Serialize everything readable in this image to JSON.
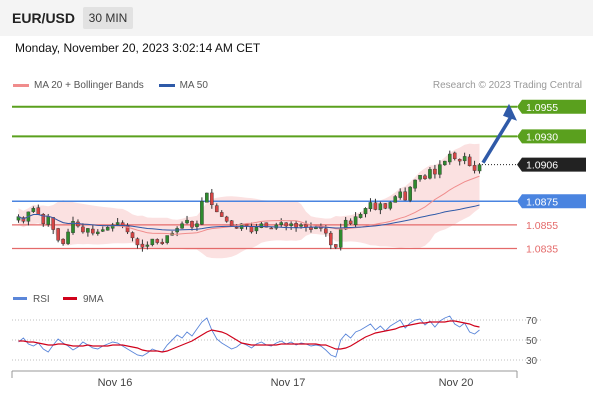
{
  "header": {
    "pair": "EUR/USD",
    "timeframe": "30 MIN",
    "datetime": "Monday, November 20, 2023 3:02:14 AM CET"
  },
  "legend": {
    "items": [
      {
        "label": "MA 20 + Bollinger Bands",
        "color": "#f08c8c"
      },
      {
        "label": "MA 50",
        "color": "#2f5aa8"
      }
    ],
    "credit": "Research © 2023 Trading Central"
  },
  "rsi_legend": {
    "items": [
      {
        "label": "RSI",
        "color": "#5b86d9"
      },
      {
        "label": "9MA",
        "color": "#d0021b"
      }
    ]
  },
  "colors": {
    "up_candle": "#2e8b2e",
    "down_candle": "#d64545",
    "resistance": "#5aa01e",
    "pivot": "#4a84e0",
    "support": "#e46a6a",
    "arrow": "#2f5aa8",
    "bollinger_fill": "#fbe1e1"
  },
  "chart_data": [
    {
      "type": "candlestick",
      "title": "",
      "x_tick_labels": [
        "Nov 16",
        "Nov 17",
        "Nov 20"
      ],
      "y_range": [
        1.081,
        1.0965
      ],
      "levels": [
        {
          "value": 1.0955,
          "label": "1.0955",
          "kind": "resistance"
        },
        {
          "value": 1.093,
          "label": "1.0930",
          "kind": "resistance"
        },
        {
          "value": 1.0906,
          "label": "1.0906",
          "kind": "last_price"
        },
        {
          "value": 1.0875,
          "label": "1.0875",
          "kind": "pivot"
        },
        {
          "value": 1.0855,
          "label": "1.0855",
          "kind": "support"
        },
        {
          "value": 1.0835,
          "label": "1.0835",
          "kind": "support"
        }
      ],
      "close_series_approx": [
        1.0862,
        1.0858,
        1.0866,
        1.0869,
        1.0864,
        1.0856,
        1.0862,
        1.0851,
        1.0842,
        1.0839,
        1.0849,
        1.0858,
        1.0854,
        1.0849,
        1.0852,
        1.0848,
        1.0849,
        1.0851,
        1.0853,
        1.0855,
        1.0857,
        1.0854,
        1.0849,
        1.0844,
        1.0838,
        1.0836,
        1.0838,
        1.0843,
        1.084,
        1.0839,
        1.0846,
        1.0848,
        1.0852,
        1.0856,
        1.0859,
        1.0853,
        1.0856,
        1.0875,
        1.0882,
        1.0872,
        1.0866,
        1.0862,
        1.0858,
        1.0854,
        1.0852,
        1.0856,
        1.0854,
        1.0849,
        1.0853,
        1.0856,
        1.0853,
        1.0852,
        1.0855,
        1.0857,
        1.0854,
        1.0856,
        1.0853,
        1.0855,
        1.0853,
        1.0851,
        1.0853,
        1.0852,
        1.0848,
        1.0838,
        1.0836,
        1.0852,
        1.0859,
        1.0856,
        1.0862,
        1.0864,
        1.0869,
        1.0874,
        1.0868,
        1.0873,
        1.0869,
        1.0874,
        1.0879,
        1.0883,
        1.0876,
        1.0887,
        1.0893,
        1.0897,
        1.0894,
        1.0902,
        1.0898,
        1.0906,
        1.0909,
        1.0915,
        1.0911,
        1.0909,
        1.0913,
        1.0905,
        1.0901,
        1.0906
      ],
      "overlays": [
        "MA 20 + Bollinger Bands",
        "MA 50"
      ]
    },
    {
      "type": "line",
      "title": "",
      "series": [
        {
          "name": "RSI",
          "values": [
            48,
            52,
            46,
            44,
            47,
            41,
            38,
            45,
            51,
            47,
            44,
            40,
            43,
            48,
            45,
            42,
            41,
            44,
            46,
            48,
            47,
            44,
            41,
            38,
            35,
            34,
            37,
            41,
            39,
            38,
            45,
            50,
            55,
            52,
            58,
            54,
            61,
            68,
            72,
            60,
            51,
            47,
            44,
            41,
            43,
            47,
            45,
            42,
            46,
            48,
            45,
            44,
            47,
            49,
            46,
            48,
            45,
            47,
            46,
            44,
            45,
            44,
            40,
            35,
            33,
            50,
            56,
            52,
            58,
            60,
            63,
            66,
            60,
            64,
            59,
            64,
            67,
            70,
            62,
            67,
            70,
            71,
            65,
            69,
            63,
            69,
            72,
            74,
            66,
            63,
            67,
            58,
            56,
            60
          ]
        },
        {
          "name": "9MA",
          "values": [
            49,
            49,
            48,
            48,
            47,
            46,
            45,
            45,
            46,
            46,
            45,
            44,
            44,
            44,
            45,
            44,
            44,
            44,
            44,
            45,
            45,
            45,
            44,
            43,
            42,
            40,
            39,
            39,
            39,
            38,
            39,
            41,
            43,
            45,
            47,
            49,
            52,
            55,
            58,
            60,
            59,
            58,
            56,
            53,
            50,
            47,
            46,
            45,
            45,
            45,
            45,
            45,
            45,
            46,
            46,
            46,
            46,
            46,
            46,
            46,
            46,
            45,
            45,
            43,
            41,
            41,
            42,
            44,
            47,
            50,
            53,
            55,
            57,
            58,
            59,
            60,
            61,
            63,
            64,
            65,
            66,
            67,
            67,
            68,
            68,
            68,
            68,
            69,
            69,
            68,
            67,
            66,
            64,
            63
          ]
        }
      ],
      "y_ticks": [
        70,
        50,
        30
      ],
      "ylim": [
        25,
        78
      ]
    }
  ]
}
